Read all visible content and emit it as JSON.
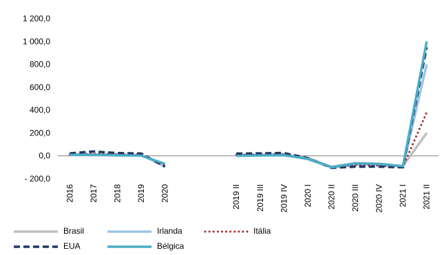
{
  "chart_data": {
    "type": "line",
    "title": "",
    "xlabel": "",
    "ylabel": "",
    "ylim": [
      -200,
      1200
    ],
    "y_ticks": [
      "1 200,0",
      "1 000,0",
      "800,0",
      "600,0",
      "400,0",
      "200,0",
      "0,0",
      "- 200,0"
    ],
    "y_tick_values": [
      1200,
      1000,
      800,
      600,
      400,
      200,
      0,
      -200
    ],
    "categories": [
      "2016",
      "2017",
      "2018",
      "2019",
      "2020",
      "",
      "",
      "2019 II",
      "2019 III",
      "2019 IV",
      "2020 I",
      "2020 II",
      "2020 III",
      "2020 IV",
      "2021 I",
      "2021 II"
    ],
    "grid": false,
    "legend_position": "bottom",
    "series": [
      {
        "name": "Brasil",
        "color": "#BFBFBF",
        "style": "solid",
        "values": [
          5,
          8,
          3,
          2,
          -80,
          null,
          null,
          2,
          5,
          8,
          -20,
          -95,
          -65,
          -70,
          -90,
          200
        ]
      },
      {
        "name": "Irlanda",
        "color": "#9DC3E6",
        "style": "solid",
        "values": [
          8,
          12,
          8,
          6,
          -90,
          null,
          null,
          5,
          8,
          10,
          -30,
          -100,
          -75,
          -75,
          -95,
          800
        ]
      },
      {
        "name": "Itália",
        "color": "#A32E2E",
        "style": "dotted",
        "values": [
          12,
          18,
          14,
          12,
          -85,
          null,
          null,
          10,
          12,
          14,
          -25,
          -100,
          -80,
          -85,
          -95,
          380
        ]
      },
      {
        "name": "EUA",
        "color": "#1F3864",
        "style": "dashed",
        "values": [
          22,
          38,
          25,
          20,
          -95,
          null,
          null,
          20,
          22,
          25,
          -20,
          -105,
          -95,
          -95,
          -100,
          950
        ]
      },
      {
        "name": "Bélgica",
        "color": "#4BACC6",
        "style": "solid",
        "values": [
          10,
          8,
          5,
          2,
          -70,
          null,
          null,
          0,
          3,
          5,
          -25,
          -100,
          -65,
          -70,
          -90,
          1000
        ]
      }
    ]
  }
}
